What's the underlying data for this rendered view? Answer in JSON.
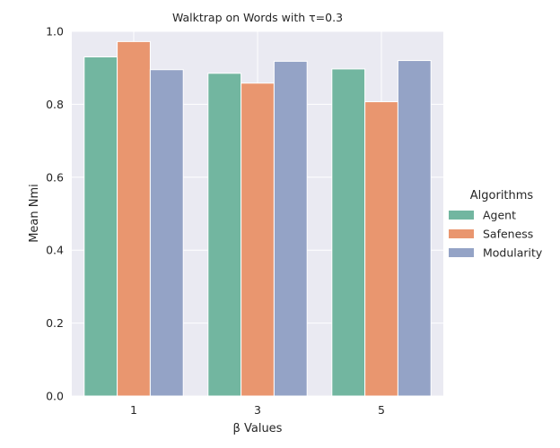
{
  "chart_data": {
    "type": "bar",
    "title": "Walktrap on Words with τ=0.3",
    "xlabel": "β Values",
    "ylabel": "Mean Nmi",
    "categories": [
      "1",
      "3",
      "5"
    ],
    "ylim": [
      0,
      1.0
    ],
    "yticks": [
      "0.0",
      "0.2",
      "0.4",
      "0.6",
      "0.8",
      "1.0"
    ],
    "grid": true,
    "legend_title": "Algorithms",
    "legend_position": "right",
    "series": [
      {
        "name": "Agent",
        "color": "#72b6a0",
        "values": [
          0.93,
          0.885,
          0.897
        ]
      },
      {
        "name": "Safeness",
        "color": "#e9966f",
        "values": [
          0.972,
          0.858,
          0.807
        ]
      },
      {
        "name": "Modularity",
        "color": "#94a3c6",
        "values": [
          0.895,
          0.918,
          0.92
        ]
      }
    ]
  }
}
